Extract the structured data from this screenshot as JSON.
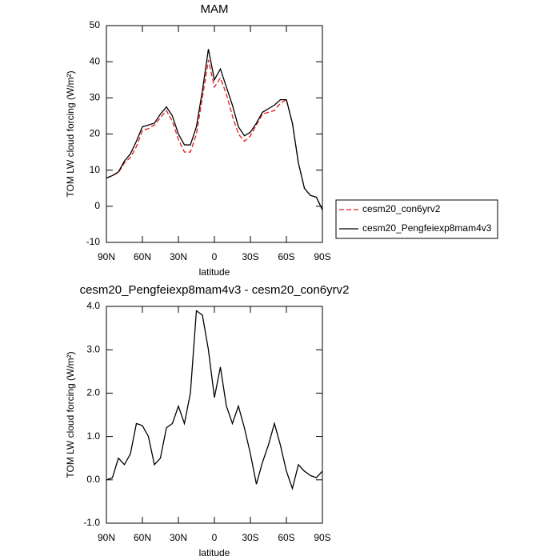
{
  "chart_data": [
    {
      "type": "line",
      "title": "MAM",
      "xlabel": "latitude",
      "ylabel": "TOM LW cloud forcing (W/m²)",
      "x": [
        90,
        85,
        80,
        75,
        70,
        65,
        60,
        55,
        50,
        45,
        40,
        35,
        30,
        25,
        20,
        15,
        10,
        5,
        0,
        -5,
        -10,
        -15,
        -20,
        -25,
        -30,
        -35,
        -40,
        -45,
        -50,
        -55,
        -60,
        -65,
        -70,
        -75,
        -80,
        -85,
        -90
      ],
      "series": [
        {
          "name": "cesm20_con6yrv2",
          "color": "#e41a1c",
          "dashed": true,
          "values": [
            7.8,
            8.5,
            9.3,
            12,
            13.5,
            16.5,
            21,
            21.5,
            22.5,
            24.5,
            26.5,
            23.5,
            18.5,
            15,
            15,
            20,
            30,
            40.5,
            33,
            35.5,
            31,
            25,
            20,
            18,
            19.5,
            22.5,
            25.5,
            26,
            26.5,
            28.5,
            29.5,
            23,
            12,
            5,
            3,
            2.5,
            -1
          ]
        },
        {
          "name": "cesm20_Pengfeiexp8mam4v3",
          "color": "#000000",
          "dashed": false,
          "values": [
            7.8,
            8.5,
            9.5,
            12.5,
            14.5,
            18,
            22,
            22.5,
            23,
            25.5,
            27.5,
            25,
            20,
            17,
            17,
            22,
            32,
            43.5,
            35,
            38,
            33,
            28,
            22,
            19.5,
            20.5,
            23,
            26,
            27,
            28,
            29.5,
            29.5,
            23,
            12,
            5,
            3,
            2.5,
            -1
          ]
        }
      ],
      "xlim": [
        90,
        -90
      ],
      "xticks": [
        {
          "value": 90,
          "label": "90N"
        },
        {
          "value": 60,
          "label": "60N"
        },
        {
          "value": 30,
          "label": "30N"
        },
        0,
        {
          "value": -30,
          "label": "30S"
        },
        {
          "value": -60,
          "label": "60S"
        },
        {
          "value": -90,
          "label": "90S"
        }
      ],
      "ylim": [
        -10,
        50
      ],
      "yticks": [
        -10,
        0,
        10,
        20,
        30,
        40,
        50
      ],
      "legend": "right"
    },
    {
      "type": "line",
      "title": "cesm20_Pengfeiexp8mam4v3 - cesm20_con6yrv2",
      "xlabel": "latitude",
      "ylabel": "TOM LW cloud forcing (W/m²)",
      "x": [
        90,
        85,
        80,
        75,
        70,
        65,
        60,
        55,
        50,
        45,
        40,
        35,
        30,
        25,
        20,
        15,
        10,
        5,
        0,
        -5,
        -10,
        -15,
        -20,
        -25,
        -30,
        -35,
        -40,
        -45,
        -50,
        -55,
        -60,
        -65,
        -70,
        -75,
        -80,
        -85,
        -90
      ],
      "series": [
        {
          "color": "#000000",
          "dashed": false,
          "values": [
            0.0,
            0.05,
            0.5,
            0.35,
            0.6,
            1.3,
            1.25,
            1.0,
            0.35,
            0.5,
            1.2,
            1.3,
            1.7,
            1.3,
            2.0,
            3.9,
            3.8,
            3.0,
            1.9,
            2.6,
            1.7,
            1.3,
            1.7,
            1.2,
            0.6,
            -0.1,
            0.4,
            0.8,
            1.3,
            0.8,
            0.2,
            -0.2,
            0.35,
            0.2,
            0.1,
            0.05,
            0.2
          ]
        }
      ],
      "xlim": [
        90,
        -90
      ],
      "xticks": [
        {
          "value": 90,
          "label": "90N"
        },
        {
          "value": 60,
          "label": "60N"
        },
        {
          "value": 30,
          "label": "30N"
        },
        0,
        {
          "value": -30,
          "label": "30S"
        },
        {
          "value": -60,
          "label": "60S"
        },
        {
          "value": -90,
          "label": "90S"
        }
      ],
      "ylim": [
        -1,
        4
      ],
      "yticks": [
        {
          "value": -1,
          "label": "-1.0"
        },
        {
          "value": 0,
          "label": "0.0"
        },
        {
          "value": 1,
          "label": "1.0"
        },
        {
          "value": 2,
          "label": "2.0"
        },
        {
          "value": 3,
          "label": "3.0"
        },
        {
          "value": 4,
          "label": "4.0"
        }
      ]
    }
  ]
}
